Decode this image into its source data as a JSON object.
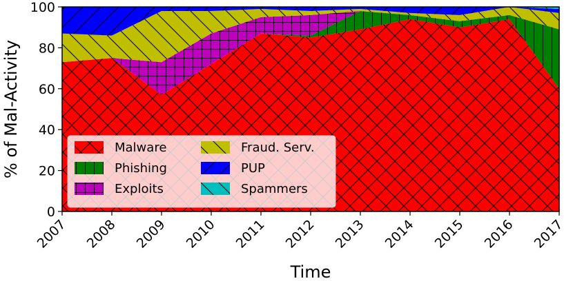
{
  "chart_data": {
    "type": "area",
    "stacked": true,
    "title": "",
    "xlabel": "Time",
    "ylabel": "% of Mal-Activity",
    "x": [
      2007,
      2008,
      2009,
      2010,
      2011,
      2012,
      2013,
      2014,
      2015,
      2016,
      2017
    ],
    "x_tick_labels": [
      "2007",
      "2008",
      "2009",
      "2010",
      "2011",
      "2012",
      "2013",
      "2014",
      "2015",
      "2016",
      "2017"
    ],
    "ylim": [
      0,
      100
    ],
    "y_ticks": [
      0,
      20,
      40,
      60,
      80,
      100
    ],
    "y_tick_labels": [
      "0",
      "20",
      "40",
      "60",
      "80",
      "100"
    ],
    "grid": false,
    "legend": {
      "placement": "lower-left",
      "columns": 2
    },
    "series": [
      {
        "name": "Malware",
        "color": "#ff0000",
        "hatch": "crosshatch-diagonal",
        "values": [
          73,
          75,
          57,
          72,
          87,
          85,
          89,
          94,
          90,
          94,
          60
        ]
      },
      {
        "name": "Phishing",
        "color": "#008000",
        "hatch": "vertical",
        "values": [
          0,
          0,
          0,
          0,
          0,
          1,
          9,
          2,
          3,
          2,
          29
        ]
      },
      {
        "name": "Exploits",
        "color": "#bf00bf",
        "hatch": "grid",
        "values": [
          0,
          0,
          16,
          15,
          8,
          10,
          0,
          0,
          0,
          0,
          0
        ]
      },
      {
        "name": "Fraud. Serv.",
        "color": "#bfbf00",
        "hatch": "backslash",
        "values": [
          14,
          11,
          25,
          11,
          4,
          2,
          1,
          1,
          3,
          4,
          8
        ]
      },
      {
        "name": "PUP",
        "color": "#0000ff",
        "hatch": "slash",
        "values": [
          13,
          14,
          2,
          2,
          1,
          2,
          1,
          3,
          4,
          0,
          2
        ]
      },
      {
        "name": "Spammers",
        "color": "#00bfbf",
        "hatch": "backslash",
        "values": [
          0,
          0,
          0,
          0,
          0,
          0,
          0,
          0,
          0,
          0,
          1
        ]
      }
    ]
  }
}
